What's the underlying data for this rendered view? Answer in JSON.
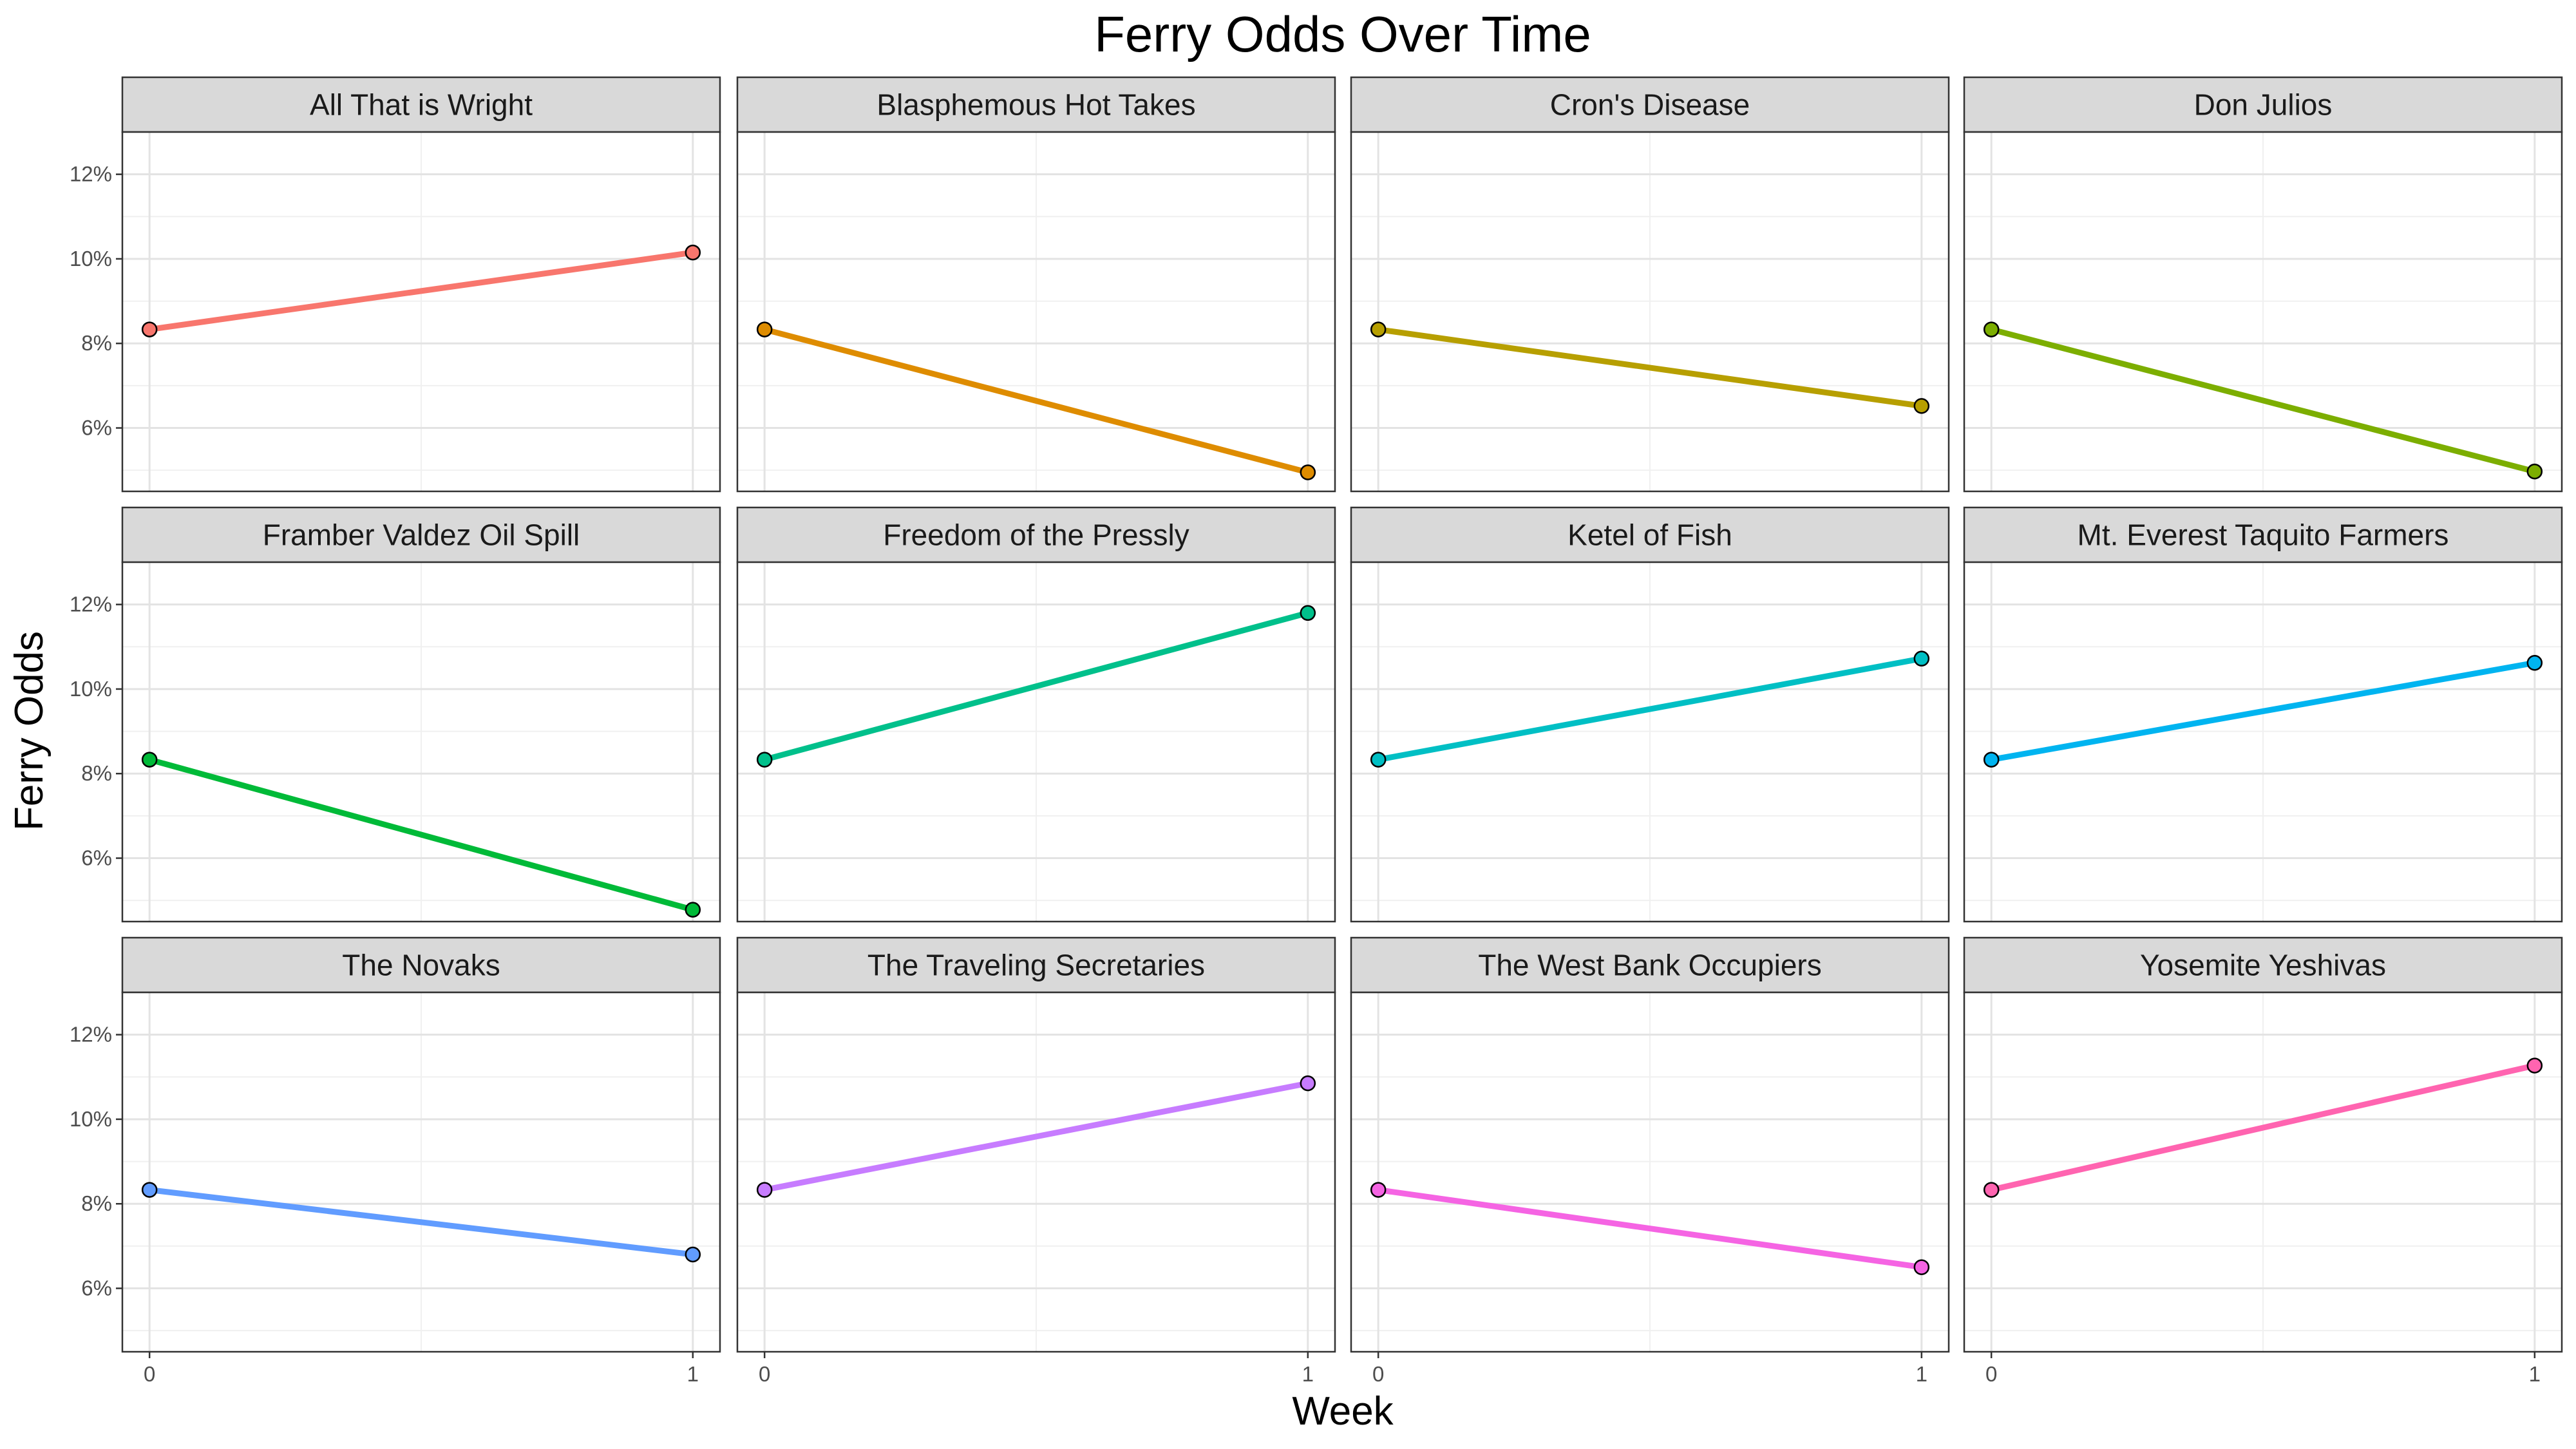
{
  "chart_data": {
    "type": "line",
    "title": "Ferry Odds Over Time",
    "xlabel": "Week",
    "ylabel": "Ferry Odds",
    "x": [
      0,
      1
    ],
    "x_ticks": [
      "0",
      "1"
    ],
    "ylim": [
      4.5,
      13.0
    ],
    "y_ticks": [
      6,
      8,
      10,
      12
    ],
    "y_tick_labels": [
      "6%",
      "8%",
      "10%",
      "12%"
    ],
    "grid": true,
    "legend": "none",
    "series": [
      {
        "name": "All That is Wright",
        "values": [
          8.33,
          10.15
        ],
        "color": "#F8766D"
      },
      {
        "name": "Blasphemous Hot Takes",
        "values": [
          8.33,
          4.95
        ],
        "color": "#DE8C00"
      },
      {
        "name": "Cron's Disease",
        "values": [
          8.33,
          6.52
        ],
        "color": "#B79F00"
      },
      {
        "name": "Don Julios",
        "values": [
          8.33,
          4.97
        ],
        "color": "#7CAE00"
      },
      {
        "name": "Framber Valdez Oil Spill",
        "values": [
          8.33,
          4.78
        ],
        "color": "#00BA38"
      },
      {
        "name": "Freedom of the Pressly",
        "values": [
          8.33,
          11.8
        ],
        "color": "#00C08B"
      },
      {
        "name": "Ketel of Fish",
        "values": [
          8.33,
          10.72
        ],
        "color": "#00BFC4"
      },
      {
        "name": "Mt. Everest Taquito Farmers",
        "values": [
          8.33,
          10.62
        ],
        "color": "#00B4F0"
      },
      {
        "name": "The Novaks",
        "values": [
          8.33,
          6.8
        ],
        "color": "#619CFF"
      },
      {
        "name": "The Traveling Secretaries",
        "values": [
          8.33,
          10.85
        ],
        "color": "#C77CFF"
      },
      {
        "name": "The West Bank Occupiers",
        "values": [
          8.33,
          6.5
        ],
        "color": "#F564E3"
      },
      {
        "name": "Yosemite Yeshivas",
        "values": [
          8.33,
          11.27
        ],
        "color": "#FF64B0"
      }
    ]
  }
}
